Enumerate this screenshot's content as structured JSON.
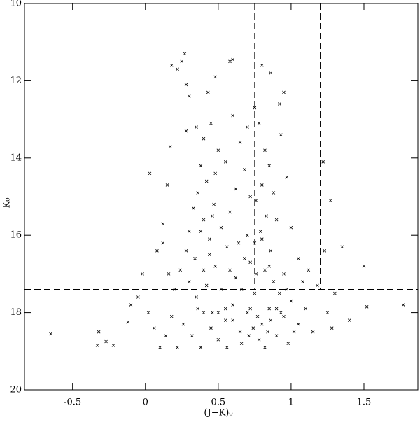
{
  "chart_data": {
    "type": "scatter",
    "x_label": "(J−K)₀",
    "y_label": "K₀",
    "xlim": [
      -0.83,
      1.87
    ],
    "ylim": [
      10,
      20
    ],
    "y_inverted": true,
    "xticks": [
      -0.5,
      0,
      0.5,
      1,
      1.5
    ],
    "yticks": [
      10,
      12,
      14,
      16,
      18,
      20
    ],
    "vlines": [
      0.75,
      1.2
    ],
    "hline": 17.4,
    "line_color": "#000000",
    "series": [
      {
        "color": "#000000",
        "x": [
          -0.65,
          -0.32,
          -0.33,
          -0.27,
          -0.22,
          -0.12,
          -0.1,
          -0.05,
          -0.02,
          0.03,
          0.08,
          0.12,
          0.15,
          0.17,
          0.18,
          0.22,
          0.27,
          0.25,
          0.28,
          0.3,
          0.28,
          1.22,
          1.27,
          1.35,
          1.5,
          1.52,
          1.77,
          1.23,
          1.3,
          1.25,
          1.4,
          1.28,
          0.6,
          0.58,
          0.48,
          0.43,
          0.86,
          0.95,
          0.92,
          0.8,
          0.75,
          0.35,
          0.4,
          0.45,
          0.5,
          0.38,
          0.42,
          0.36,
          0.48,
          0.55,
          0.33,
          0.4,
          0.47,
          0.52,
          0.58,
          0.3,
          0.44,
          0.56,
          0.62,
          0.65,
          0.6,
          0.7,
          0.68,
          0.72,
          0.78,
          0.82,
          0.85,
          0.8,
          0.76,
          0.83,
          0.79,
          0.75,
          0.86,
          0.9,
          0.88,
          0.93,
          0.97,
          1.0,
          1.05,
          0.95,
          0.82,
          0.72,
          0.3,
          0.35,
          0.4,
          0.45,
          0.5,
          0.55,
          0.6,
          0.65,
          0.7,
          0.75,
          0.8,
          0.85,
          0.9,
          0.95,
          1.0,
          1.05,
          1.1,
          1.15,
          0.32,
          0.38,
          0.42,
          0.48,
          0.52,
          0.58,
          0.62,
          0.68,
          0.72,
          0.78,
          0.82,
          0.88,
          0.92,
          0.98,
          1.02,
          0.66,
          0.74,
          0.84,
          0.56,
          0.46,
          0.36,
          0.26,
          0.22,
          0.18,
          0.14,
          0.1,
          0.06,
          0.02,
          0.2,
          0.24,
          0.28,
          0.16,
          0.12,
          0.64,
          0.7,
          0.8,
          0.85,
          0.9,
          0.76,
          0.6,
          0.5,
          0.44,
          1.08,
          1.12,
          1.18,
          0.55,
          0.66,
          0.71,
          0.77,
          0.86,
          0.93,
          0.97,
          0.4,
          0.34,
          0.46,
          0.38
        ],
        "values": [
          18.55,
          18.5,
          18.85,
          18.75,
          18.85,
          18.25,
          17.8,
          17.6,
          17.0,
          14.4,
          16.4,
          15.7,
          14.7,
          13.7,
          11.6,
          11.7,
          11.3,
          11.5,
          12.1,
          12.4,
          13.3,
          14.1,
          15.1,
          16.3,
          16.8,
          17.85,
          17.8,
          16.4,
          17.5,
          18.0,
          18.2,
          18.4,
          11.45,
          11.5,
          11.9,
          12.3,
          11.8,
          12.3,
          12.6,
          11.6,
          12.7,
          13.2,
          13.5,
          13.1,
          13.8,
          14.2,
          14.6,
          14.9,
          14.4,
          14.1,
          15.3,
          15.6,
          15.2,
          15.8,
          15.4,
          15.9,
          16.1,
          16.3,
          14.8,
          13.6,
          12.9,
          13.2,
          14.3,
          15.0,
          13.1,
          13.8,
          14.2,
          14.7,
          15.1,
          15.5,
          15.9,
          16.2,
          16.4,
          15.6,
          14.9,
          13.4,
          14.5,
          15.8,
          16.6,
          17.0,
          16.9,
          16.7,
          17.2,
          17.6,
          18.0,
          18.4,
          18.7,
          18.2,
          17.8,
          18.5,
          18.0,
          17.5,
          18.3,
          17.9,
          18.6,
          18.1,
          17.7,
          18.3,
          17.9,
          18.5,
          18.6,
          18.9,
          17.3,
          16.8,
          17.4,
          16.9,
          17.1,
          16.6,
          17.9,
          18.7,
          18.9,
          17.2,
          17.5,
          18.8,
          18.5,
          18.8,
          18.4,
          18.5,
          18.9,
          18.0,
          17.9,
          18.3,
          18.9,
          18.1,
          18.6,
          18.9,
          18.4,
          18.0,
          17.4,
          16.9,
          16.4,
          17.0,
          16.2,
          16.2,
          16.0,
          16.1,
          16.8,
          17.9,
          17.0,
          18.2,
          18.0,
          16.5,
          17.2,
          16.9,
          17.3,
          17.9,
          17.4,
          18.6,
          18.1,
          18.2,
          18.0,
          17.4,
          16.9,
          16.6,
          15.5,
          15.9
        ]
      }
    ]
  }
}
